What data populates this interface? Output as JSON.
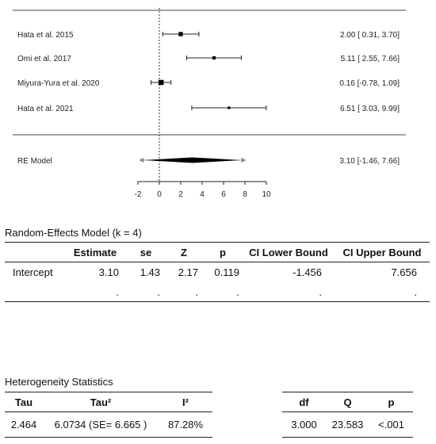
{
  "chart_data": {
    "type": "forest",
    "xlim": [
      -2,
      10
    ],
    "xticks": [
      -2,
      0,
      2,
      4,
      6,
      8,
      10
    ],
    "reference_line": 0,
    "studies": [
      {
        "label": "Hata et al. 2015",
        "est": 2.0,
        "lower": 0.31,
        "upper": 3.7,
        "ci_text": "2.00 [ 0.31, 3.70]",
        "weight": 0.55
      },
      {
        "label": "Omi et al. 2017",
        "est": 5.11,
        "lower": 2.55,
        "upper": 7.66,
        "ci_text": "5.11 [ 2.55, 7.66]",
        "weight": 0.35
      },
      {
        "label": "Miyura-Yura et al. 2020",
        "est": 0.16,
        "lower": -0.78,
        "upper": 1.09,
        "ci_text": "0.16 [-0.78, 1.09]",
        "weight": 0.75
      },
      {
        "label": "Hata et al. 2021",
        "est": 6.51,
        "lower": 3.03,
        "upper": 9.99,
        "ci_text": "6.51 [ 3.03, 9.99]",
        "weight": 0.2
      }
    ],
    "summary": {
      "label": "RE Model",
      "est": 3.1,
      "lower": -1.46,
      "upper": 7.66,
      "ci_text": "3.10 [-1.46, 7.66]"
    }
  },
  "re_model": {
    "title": "Random-Effects Model (k = 4)",
    "columns": [
      "",
      "Estimate",
      "se",
      "Z",
      "p",
      "CI Lower Bound",
      "CI Upper Bound"
    ],
    "rows": [
      [
        "Intercept",
        "3.10",
        "1.43",
        "2.17",
        "0.119",
        "-1.456",
        "7.656"
      ],
      [
        "",
        ".",
        ".",
        ".",
        ".",
        ".",
        "."
      ]
    ]
  },
  "heterogeneity": {
    "title": "Heterogeneity Statistics",
    "left_columns": [
      "Tau",
      "Tau²",
      "I²"
    ],
    "left_row": [
      "2.464",
      "6.0734 (SE= 6.665 )",
      "87.28%"
    ],
    "right_columns": [
      "df",
      "Q",
      "p"
    ],
    "right_row": [
      "3.000",
      "23.583",
      "<.001"
    ]
  }
}
